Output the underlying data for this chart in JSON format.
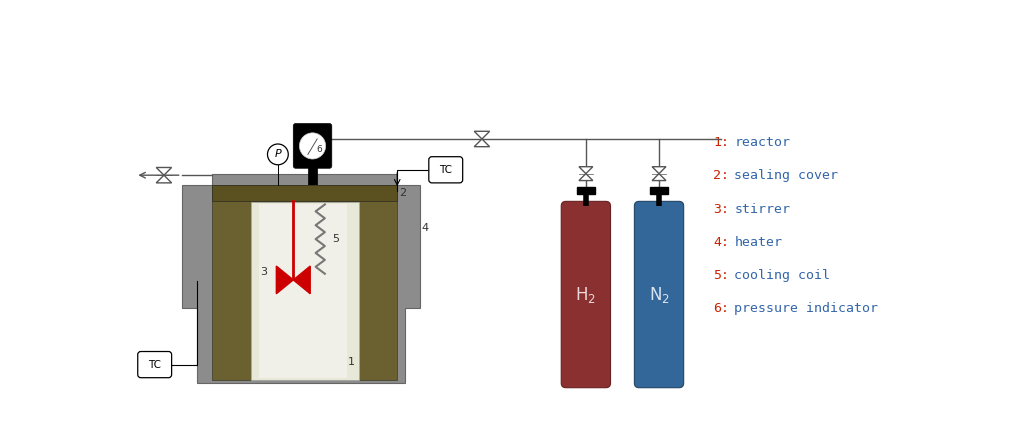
{
  "bg_color": "#ffffff",
  "legend_items": [
    {
      "num": "1",
      "text": "reactor"
    },
    {
      "num": "2",
      "text": "sealing cover"
    },
    {
      "num": "3",
      "text": "stirrer"
    },
    {
      "num": "4",
      "text": "heater"
    },
    {
      "num": "5",
      "text": "cooling coil"
    },
    {
      "num": "6",
      "text": "pressure indicator"
    }
  ],
  "legend_num_color": "#cc2200",
  "legend_text_color": "#3366aa",
  "heater_color": "#6b6030",
  "outer_body_color": "#8c8c8c",
  "inner_vessel_light": "#e8e8d8",
  "sealing_cover_color": "#5a5020",
  "h2_bottle_color": "#8b3030",
  "n2_bottle_color": "#336699",
  "label_color": "#333333",
  "pipe_color": "#555555",
  "figsize": [
    10.32,
    4.46
  ],
  "dpi": 100
}
